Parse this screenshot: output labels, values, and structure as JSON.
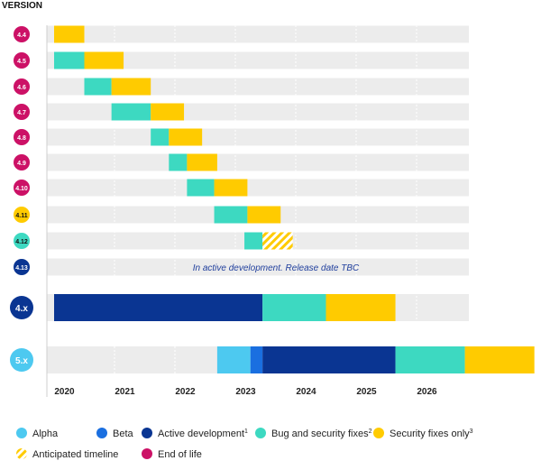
{
  "chart_data": {
    "type": "gantt",
    "y_axis_label": "VERSION",
    "x_axis": {
      "ticks": [
        "2020",
        "2021",
        "2022",
        "2023",
        "2024",
        "2025",
        "2026"
      ],
      "range": [
        2020,
        2027
      ]
    },
    "colors": {
      "alpha": "#4dc9f0",
      "beta": "#1a6fe0",
      "active": "#0a3592",
      "bugfix": "#3dd9c1",
      "security": "#ffcb00",
      "anticipated": "#ffcb00",
      "eol": "#cc1166",
      "track": "#ececec"
    },
    "rows": [
      {
        "version": "4.4",
        "badge": "eol",
        "large": false,
        "segments": [
          {
            "phase": "security",
            "start": 2020.0,
            "end": 2020.5
          }
        ]
      },
      {
        "version": "4.5",
        "badge": "eol",
        "large": false,
        "segments": [
          {
            "phase": "bugfix",
            "start": 2020.0,
            "end": 2020.5
          },
          {
            "phase": "security",
            "start": 2020.5,
            "end": 2021.15
          }
        ]
      },
      {
        "version": "4.6",
        "badge": "eol",
        "large": false,
        "segments": [
          {
            "phase": "bugfix",
            "start": 2020.5,
            "end": 2020.95
          },
          {
            "phase": "security",
            "start": 2020.95,
            "end": 2021.6
          }
        ]
      },
      {
        "version": "4.7",
        "badge": "eol",
        "large": false,
        "segments": [
          {
            "phase": "bugfix",
            "start": 2020.95,
            "end": 2021.6
          },
          {
            "phase": "security",
            "start": 2021.6,
            "end": 2022.15
          }
        ]
      },
      {
        "version": "4.8",
        "badge": "eol",
        "large": false,
        "segments": [
          {
            "phase": "bugfix",
            "start": 2021.6,
            "end": 2021.9
          },
          {
            "phase": "security",
            "start": 2021.9,
            "end": 2022.45
          }
        ]
      },
      {
        "version": "4.9",
        "badge": "eol",
        "large": false,
        "segments": [
          {
            "phase": "bugfix",
            "start": 2021.9,
            "end": 2022.2
          },
          {
            "phase": "security",
            "start": 2022.2,
            "end": 2022.7
          }
        ]
      },
      {
        "version": "4.10",
        "badge": "eol",
        "large": false,
        "segments": [
          {
            "phase": "bugfix",
            "start": 2022.2,
            "end": 2022.65
          },
          {
            "phase": "security",
            "start": 2022.65,
            "end": 2023.2
          }
        ]
      },
      {
        "version": "4.11",
        "badge": "security",
        "large": false,
        "segments": [
          {
            "phase": "bugfix",
            "start": 2022.65,
            "end": 2023.2
          },
          {
            "phase": "security",
            "start": 2023.2,
            "end": 2023.75
          }
        ]
      },
      {
        "version": "4.12",
        "badge": "bugfix",
        "large": false,
        "segments": [
          {
            "phase": "bugfix",
            "start": 2023.15,
            "end": 2023.45
          },
          {
            "phase": "anticipated",
            "start": 2023.45,
            "end": 2023.95
          }
        ]
      },
      {
        "version": "4.13",
        "badge": "active",
        "large": false,
        "note": "In active development. Release date TBC",
        "segments": []
      },
      {
        "version": "4.x",
        "badge": "active",
        "large": true,
        "segments": [
          {
            "phase": "active",
            "start": 2020.0,
            "end": 2023.45
          },
          {
            "phase": "bugfix",
            "start": 2023.45,
            "end": 2024.5
          },
          {
            "phase": "security",
            "start": 2024.5,
            "end": 2025.65
          }
        ]
      },
      {
        "version": "5.x",
        "badge": "alpha",
        "large": true,
        "segments": [
          {
            "phase": "alpha",
            "start": 2022.7,
            "end": 2023.25
          },
          {
            "phase": "beta",
            "start": 2023.25,
            "end": 2023.45
          },
          {
            "phase": "active",
            "start": 2023.45,
            "end": 2025.65
          },
          {
            "phase": "bugfix",
            "start": 2025.65,
            "end": 2026.8
          },
          {
            "phase": "security",
            "start": 2026.8,
            "end": 2027.95
          }
        ]
      }
    ],
    "legend": [
      {
        "key": "alpha",
        "label": "Alpha",
        "sup": ""
      },
      {
        "key": "beta",
        "label": "Beta",
        "sup": ""
      },
      {
        "key": "active",
        "label": "Active development",
        "sup": "1"
      },
      {
        "key": "bugfix",
        "label": "Bug and security fixes",
        "sup": "2"
      },
      {
        "key": "security",
        "label": "Security fixes only",
        "sup": "3"
      },
      {
        "key": "anticipated",
        "label": "Anticipated timeline",
        "sup": ""
      },
      {
        "key": "eol",
        "label": "End of life",
        "sup": ""
      }
    ]
  }
}
